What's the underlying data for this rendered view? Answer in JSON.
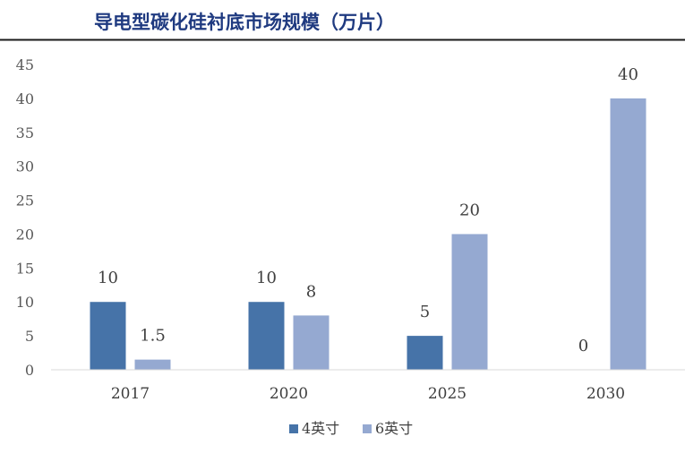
{
  "chart_data": {
    "type": "bar",
    "title": "导电型碳化硅衬底市场规模（万片）",
    "categories": [
      "2017",
      "2020",
      "2025",
      "2030"
    ],
    "series": [
      {
        "name": "4英寸",
        "values": [
          10,
          10,
          5,
          0
        ],
        "color": "#4673a8"
      },
      {
        "name": "6英寸",
        "values": [
          1.5,
          8,
          20,
          40
        ],
        "color": "#95a9d1"
      }
    ],
    "data_labels": [
      "10",
      "1.5",
      "10",
      "8",
      "5",
      "20",
      "0",
      "40"
    ],
    "ylim": [
      0,
      45
    ],
    "yticks": [
      0,
      5,
      10,
      15,
      20,
      25,
      30,
      35,
      40,
      45
    ],
    "grid": false,
    "legend_position": "bottom-center",
    "title_color": "#1f3a80",
    "rule_color": "#1a1a1a"
  }
}
